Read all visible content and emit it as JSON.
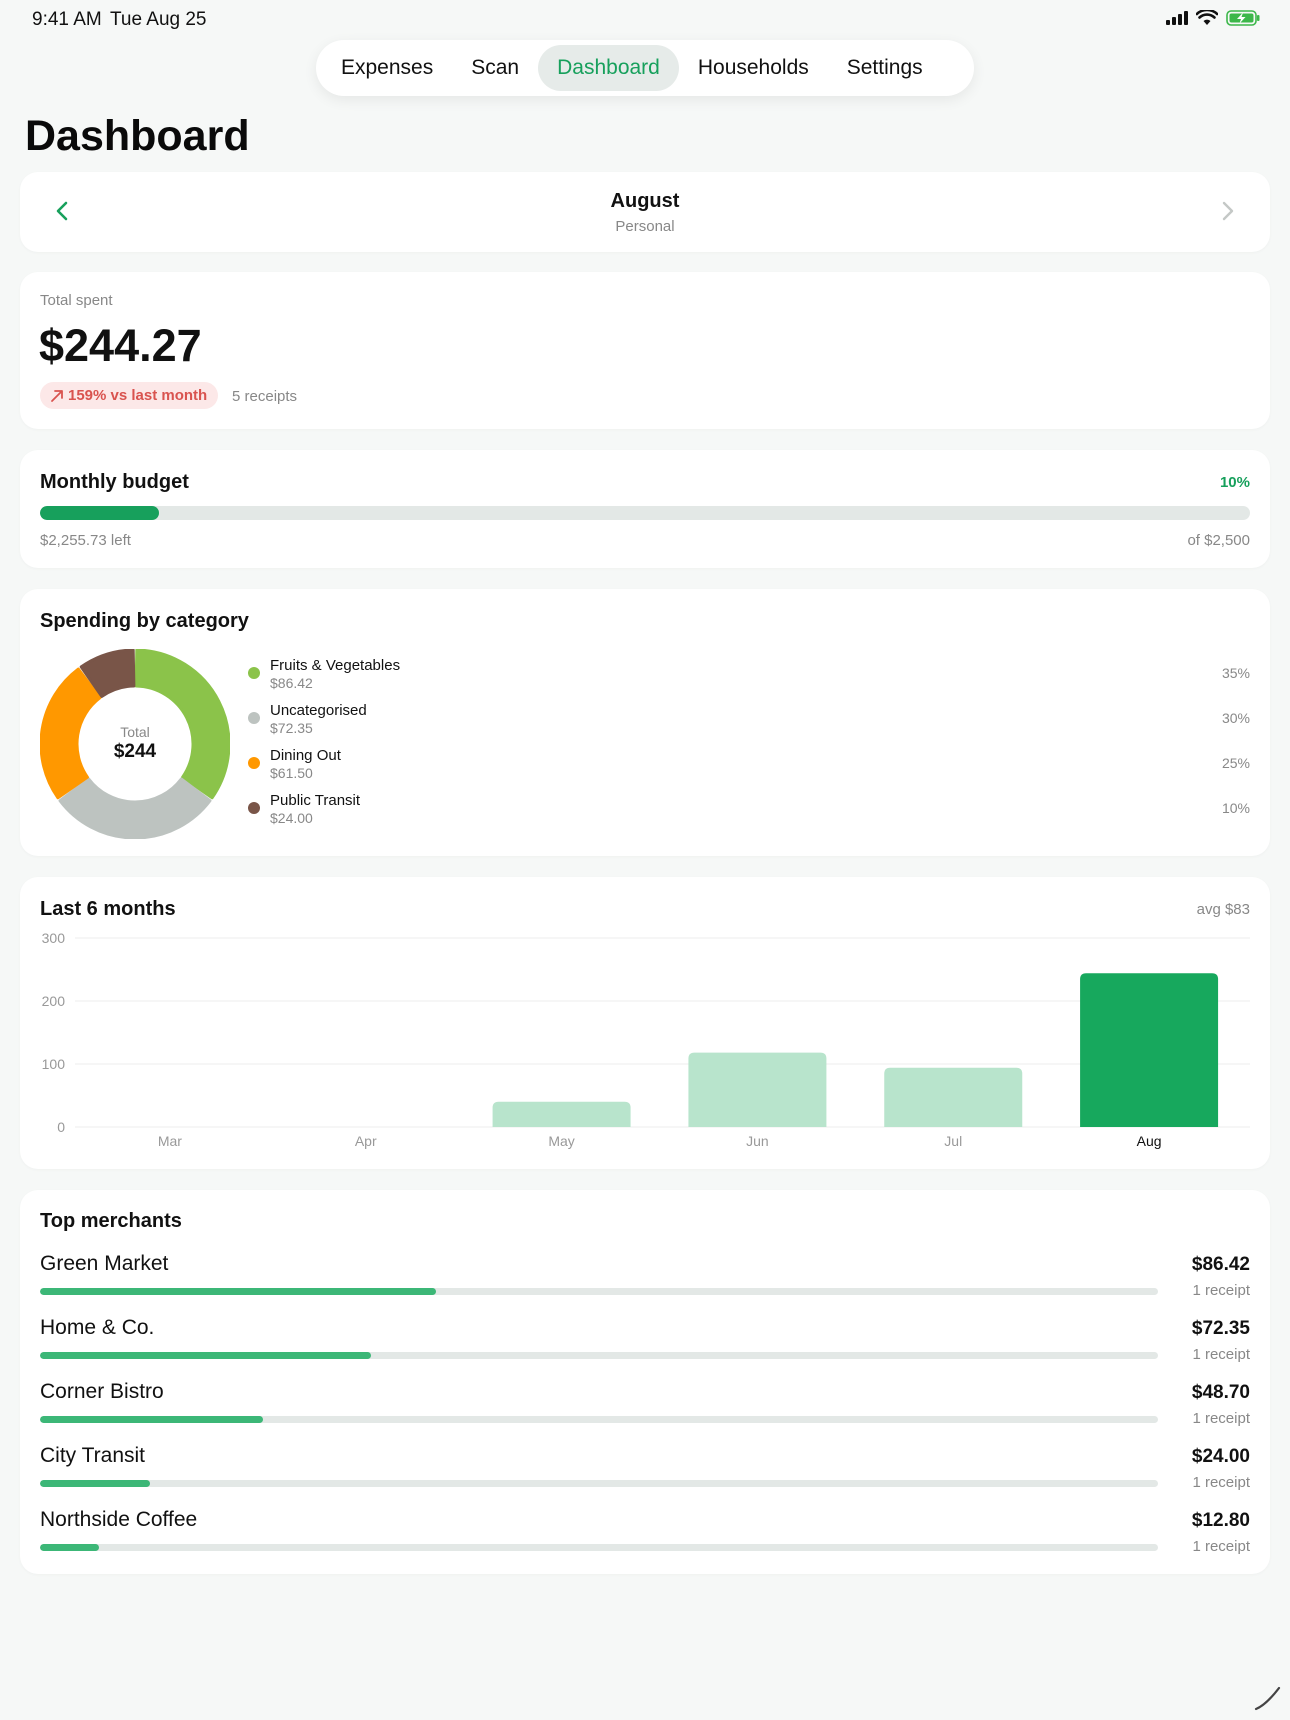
{
  "status_bar": {
    "time": "9:41 AM",
    "date": "Tue Aug 25"
  },
  "nav": {
    "tabs": [
      {
        "label": "Expenses",
        "active": false
      },
      {
        "label": "Scan",
        "active": false
      },
      {
        "label": "Dashboard",
        "active": true
      },
      {
        "label": "Households",
        "active": false
      },
      {
        "label": "Settings",
        "active": false
      }
    ]
  },
  "page": {
    "title": "Dashboard"
  },
  "period": {
    "month": "August",
    "scope": "Personal"
  },
  "summary": {
    "total_label": "Total spent",
    "total_amount": "$244.27",
    "delta_text": "159% vs last month",
    "receipts": "5 receipts"
  },
  "budget": {
    "title": "Monthly budget",
    "percent_label": "10%",
    "fraction": 0.098,
    "left_text": "$2,255.73 left",
    "of_text": "of $2,500"
  },
  "category": {
    "title": "Spending by category",
    "center_label": "Total",
    "center_value": "$244",
    "items": [
      {
        "name": "Fruits & Vegetables",
        "amount": "$86.42",
        "pct": "35%",
        "share": 35,
        "color": "#8bc34a"
      },
      {
        "name": "Uncategorised",
        "amount": "$72.35",
        "pct": "30%",
        "share": 30,
        "color": "#bdc3c0"
      },
      {
        "name": "Dining Out",
        "amount": "$61.50",
        "pct": "25%",
        "share": 25,
        "color": "#ff9800"
      },
      {
        "name": "Public Transit",
        "amount": "$24.00",
        "pct": "10%",
        "share": 10,
        "color": "#795548"
      }
    ]
  },
  "months": {
    "title": "Last 6 months",
    "avg_label": "avg $83"
  },
  "chart_data": {
    "type": "bar",
    "categories": [
      "Mar",
      "Apr",
      "May",
      "Jun",
      "Jul",
      "Aug"
    ],
    "values": [
      0,
      0,
      40,
      118,
      94,
      244
    ],
    "highlight": "Aug",
    "ylim": [
      0,
      300
    ],
    "yticks": [
      "0",
      "100",
      "200",
      "300"
    ],
    "ytick_values": [
      0,
      100,
      200,
      300
    ],
    "grid": true,
    "colors": {
      "normal": "#b8e4cc",
      "highlight": "#17a85d"
    }
  },
  "merchants": {
    "title": "Top merchants",
    "items": [
      {
        "name": "Green Market",
        "amount": "$86.42",
        "receipts": "1 receipt",
        "value": 86.42
      },
      {
        "name": "Home & Co.",
        "amount": "$72.35",
        "receipts": "1 receipt",
        "value": 72.35
      },
      {
        "name": "Corner Bistro",
        "amount": "$48.70",
        "receipts": "1 receipt",
        "value": 48.7
      },
      {
        "name": "City Transit",
        "amount": "$24.00",
        "receipts": "1 receipt",
        "value": 24.0
      },
      {
        "name": "Northside Coffee",
        "amount": "$12.80",
        "receipts": "1 receipt",
        "value": 12.8
      }
    ],
    "max_value": 244.27
  },
  "colors": {
    "accent": "#17a05c",
    "negative": "#d9534f"
  }
}
